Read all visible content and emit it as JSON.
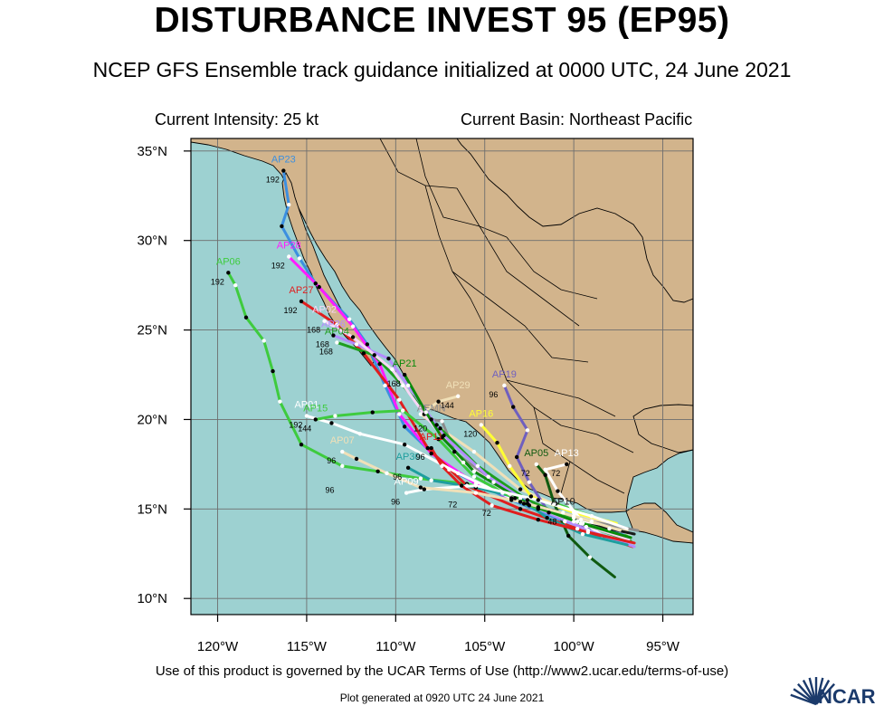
{
  "title": "DISTURBANCE INVEST 95 (EP95)",
  "subtitle": "NCEP GFS Ensemble track guidance initialized at 0000 UTC, 24 June 2021",
  "current_intensity": "Current Intensity: 25 kt",
  "current_basin": "Current Basin: Northeast Pacific",
  "terms": "Use of this product is governed by the UCAR Terms of Use (http://www2.ucar.edu/terms-of-use)",
  "generated": "Plot generated at 0920 UTC   24 June 2021",
  "logo_text": "NCAR",
  "colors": {
    "ocean": "#9dd1d1",
    "land": "#d2b48c",
    "border": "#000000",
    "grid": "#6e6e6e",
    "logo": "#1b3a6b"
  },
  "map": {
    "lat_labels": [
      "35°N",
      "30°N",
      "25°N",
      "20°N",
      "15°N",
      "10°N"
    ],
    "lon_labels": [
      "120°W",
      "115°W",
      "110°W",
      "105°W",
      "100°W",
      "95°W"
    ],
    "lat_range": [
      9.1,
      35.7
    ],
    "lon_range": [
      -121.5,
      -93.3
    ]
  },
  "tracks": [
    {
      "id": "AP06",
      "label": "AP06",
      "color": "#3ecb3e",
      "end_hour": "192",
      "points": [
        [
          -97.0,
          13.6
        ],
        [
          -99,
          14.6
        ],
        [
          -101,
          15.3
        ],
        [
          -104,
          15.9
        ],
        [
          -106,
          16.4
        ],
        [
          -108.6,
          16.7
        ],
        [
          -111,
          17.1
        ],
        [
          -113,
          17.4
        ],
        [
          -115.3,
          18.6
        ],
        [
          -116.5,
          21.0
        ],
        [
          -116.9,
          22.7
        ],
        [
          -117.4,
          24.4
        ],
        [
          -118.4,
          25.7
        ],
        [
          -119.0,
          27.5
        ],
        [
          -119.4,
          28.2
        ]
      ]
    },
    {
      "id": "AP23",
      "label": "AP23",
      "color": "#3b8fe0",
      "end_hour": "192",
      "points": [
        [
          -97.2,
          13.6
        ],
        [
          -100.5,
          14.3
        ],
        [
          -103.5,
          15.5
        ],
        [
          -107,
          17.2
        ],
        [
          -109.5,
          19.6
        ],
        [
          -110.6,
          21.9
        ],
        [
          -111.6,
          24.2
        ],
        [
          -112.6,
          25.6
        ],
        [
          -114.5,
          27.6
        ],
        [
          -115.4,
          29.0
        ],
        [
          -116.4,
          30.8
        ],
        [
          -116.0,
          32.0
        ],
        [
          -116.3,
          33.9
        ]
      ]
    },
    {
      "id": "AP28",
      "label": "AP28",
      "color": "#ff1cff",
      "end_hour": "192",
      "points": [
        [
          -97.0,
          13.4
        ],
        [
          -99.5,
          14.2
        ],
        [
          -102.5,
          15.2
        ],
        [
          -105.5,
          16.4
        ],
        [
          -108,
          18.1
        ],
        [
          -109.8,
          20.3
        ],
        [
          -110.9,
          23.1
        ],
        [
          -112.4,
          25.2
        ],
        [
          -114.3,
          27.4
        ],
        [
          -116.0,
          29.1
        ]
      ]
    },
    {
      "id": "AP27",
      "label": "AP27",
      "color": "#e01e1e",
      "end_hour": "192",
      "points": [
        [
          -96.7,
          12.9
        ],
        [
          -99.8,
          13.9
        ],
        [
          -103,
          15.0
        ],
        [
          -106,
          16.3
        ],
        [
          -108.2,
          18.4
        ],
        [
          -109.8,
          21.1
        ],
        [
          -111.8,
          23.7
        ],
        [
          -113.3,
          25.3
        ],
        [
          -115.3,
          26.6
        ]
      ]
    },
    {
      "id": "AP01",
      "label": "AP01",
      "color": "#ffffff",
      "end_hour": "192",
      "points": [
        [
          -96.8,
          13.6
        ],
        [
          -100,
          14.5
        ],
        [
          -103.5,
          15.6
        ],
        [
          -106.5,
          17.0
        ],
        [
          -109.5,
          18.6
        ],
        [
          -112.0,
          19.2
        ],
        [
          -113.6,
          19.8
        ],
        [
          -115.0,
          20.2
        ]
      ]
    },
    {
      "id": "AP29",
      "label": "AP29",
      "color": "#f0e0b8",
      "end_hour": "144",
      "points": [
        [
          -97.0,
          13.8
        ],
        [
          -100,
          14.8
        ],
        [
          -103,
          16.1
        ],
        [
          -105.6,
          18.2
        ],
        [
          -107.5,
          19.5
        ],
        [
          -108.6,
          20.3
        ],
        [
          -107.6,
          21.0
        ],
        [
          -106.5,
          21.3
        ]
      ]
    },
    {
      "id": "AP16",
      "label": "AP16",
      "color": "#ffff33",
      "end_hour": "120",
      "points": [
        [
          -97.6,
          14.2
        ],
        [
          -100,
          14.8
        ],
        [
          -102.4,
          15.7
        ],
        [
          -103.6,
          17.4
        ],
        [
          -104.3,
          18.7
        ],
        [
          -105.2,
          19.7
        ]
      ]
    },
    {
      "id": "AP19",
      "label": "AP19",
      "color": "#6f5fbf",
      "end_hour": "96",
      "points": [
        [
          -97.5,
          13.6
        ],
        [
          -99.3,
          14.0
        ],
        [
          -101.4,
          14.8
        ],
        [
          -102.5,
          16.5
        ],
        [
          -103.2,
          17.9
        ],
        [
          -102.6,
          19.4
        ],
        [
          -103.4,
          20.7
        ],
        [
          -103.9,
          21.9
        ]
      ]
    },
    {
      "id": "AP05",
      "label": "AP05",
      "color": "#0f5a0f",
      "end_hour": "72",
      "points": [
        [
          -97.7,
          11.2
        ],
        [
          -99.1,
          12.3
        ],
        [
          -100.3,
          13.5
        ],
        [
          -101.1,
          15.3
        ],
        [
          -101.6,
          16.9
        ],
        [
          -102.1,
          17.5
        ]
      ]
    },
    {
      "id": "AP13",
      "label": "AP13",
      "color": "#ffffff",
      "end_hour": "72",
      "points": [
        [
          -98.4,
          13.5
        ],
        [
          -99.6,
          14.4
        ],
        [
          -100.9,
          16.0
        ],
        [
          -101.6,
          17.2
        ],
        [
          -100.4,
          17.5
        ]
      ]
    },
    {
      "id": "AP10",
      "label": "AP10",
      "color": "#1a1a1a",
      "end_hour": "48",
      "points": [
        [
          -96.6,
          13.6
        ],
        [
          -98.0,
          13.9
        ],
        [
          -99.6,
          14.2
        ],
        [
          -100.6,
          14.8
        ]
      ]
    },
    {
      "id": "AEMN",
      "label": "AEMN",
      "color": "#8c8c8c",
      "end_hour": "120",
      "points": [
        [
          -96.4,
          13.8
        ],
        [
          -99,
          14.3
        ],
        [
          -102,
          15.1
        ],
        [
          -104.5,
          16.5
        ],
        [
          -106.7,
          18.2
        ],
        [
          -107.4,
          19.9
        ],
        [
          -108.0,
          20.0
        ]
      ]
    },
    {
      "id": "AP04",
      "label": "AP04",
      "color": "#1e9e1e",
      "end_hour": "168",
      "points": [
        [
          -96.8,
          13.2
        ],
        [
          -99.6,
          14.2
        ],
        [
          -102.6,
          15.5
        ],
        [
          -105.4,
          17.4
        ],
        [
          -107.7,
          19.7
        ],
        [
          -109.6,
          21.9
        ],
        [
          -111.2,
          23.6
        ],
        [
          -113.3,
          24.3
        ]
      ]
    },
    {
      "id": "AP26",
      "label": "AP26",
      "color": "#b48cff",
      "end_hour": "168",
      "points": [
        [
          -96.6,
          12.9
        ],
        [
          -99.2,
          13.8
        ],
        [
          -102,
          15.0
        ],
        [
          -104.8,
          16.8
        ],
        [
          -107.3,
          19.1
        ],
        [
          -109.3,
          21.9
        ],
        [
          -110.4,
          23.4
        ],
        [
          -112.2,
          24.2
        ],
        [
          -113.5,
          24.7
        ]
      ]
    },
    {
      "id": "AP30",
      "label": "AP30",
      "color": "#1e9e9e",
      "end_hour": "96",
      "points": [
        [
          -97.0,
          13.0
        ],
        [
          -99.5,
          13.6
        ],
        [
          -101.5,
          14.5
        ],
        [
          -103,
          15.6
        ],
        [
          -105.5,
          16.2
        ],
        [
          -108.0,
          16.6
        ],
        [
          -109.3,
          17.3
        ]
      ]
    },
    {
      "id": "AP15",
      "label": "AP15",
      "color": "#3ecb3e",
      "end_hour": "144",
      "points": [
        [
          -97.2,
          13.5
        ],
        [
          -99.8,
          14.3
        ],
        [
          -102.8,
          15.3
        ],
        [
          -105.6,
          16.8
        ],
        [
          -107.6,
          18.9
        ],
        [
          -109.6,
          20.5
        ],
        [
          -111.3,
          20.4
        ],
        [
          -113.4,
          20.2
        ],
        [
          -114.5,
          20.0
        ]
      ]
    },
    {
      "id": "AP02",
      "label": "AP02",
      "color": "#f7d6f7",
      "end_hour": "168",
      "points": [
        [
          -96.9,
          13.3
        ],
        [
          -100,
          14.3
        ],
        [
          -103.3,
          15.6
        ],
        [
          -106.2,
          17.6
        ],
        [
          -108.4,
          20.3
        ],
        [
          -110.2,
          22.8
        ],
        [
          -112.4,
          24.6
        ],
        [
          -114.0,
          25.5
        ]
      ]
    },
    {
      "id": "AP21",
      "label": "AP21",
      "color": "#0a8a0a",
      "end_hour": "168",
      "points": [
        [
          -96.8,
          13.4
        ],
        [
          -99.6,
          14.2
        ],
        [
          -102.6,
          15.3
        ],
        [
          -105.6,
          17.1
        ],
        [
          -107.4,
          19.0
        ],
        [
          -108.3,
          20.4
        ],
        [
          -109.5,
          22.5
        ]
      ]
    },
    {
      "id": "AP09",
      "label": "AP09",
      "color": "#ffffff",
      "end_hour": "96",
      "points": [
        [
          -97.0,
          13.9
        ],
        [
          -99,
          14.6
        ],
        [
          -102,
          15.5
        ],
        [
          -105.5,
          16.3
        ],
        [
          -108.4,
          16.1
        ],
        [
          -109.4,
          15.9
        ]
      ]
    },
    {
      "id": "AP11",
      "label": "AP11",
      "color": "#e01e1e",
      "end_hour": "96",
      "points": [
        [
          -96.6,
          13.1
        ],
        [
          -99.2,
          13.7
        ],
        [
          -102,
          14.4
        ],
        [
          -104.6,
          15.2
        ],
        [
          -106.3,
          16.3
        ],
        [
          -107.4,
          17.4
        ],
        [
          -108.0,
          18.4
        ]
      ]
    },
    {
      "id": "AP07",
      "label": "AP07",
      "color": "#f0e0b8",
      "end_hour": "96",
      "points": [
        [
          -97.4,
          13.8
        ],
        [
          -100,
          14.6
        ],
        [
          -103,
          15.4
        ],
        [
          -105.5,
          15.9
        ],
        [
          -108.6,
          16.2
        ],
        [
          -110.5,
          17.0
        ],
        [
          -112.2,
          17.8
        ],
        [
          -113.0,
          18.2
        ]
      ]
    }
  ],
  "extra_markers": [
    {
      "text": "96",
      "lon": -113.7,
      "lat": 15.9
    },
    {
      "text": "72",
      "lon": -106.8,
      "lat": 15.1
    },
    {
      "text": "72",
      "lon": -104.9,
      "lat": 14.6
    }
  ]
}
